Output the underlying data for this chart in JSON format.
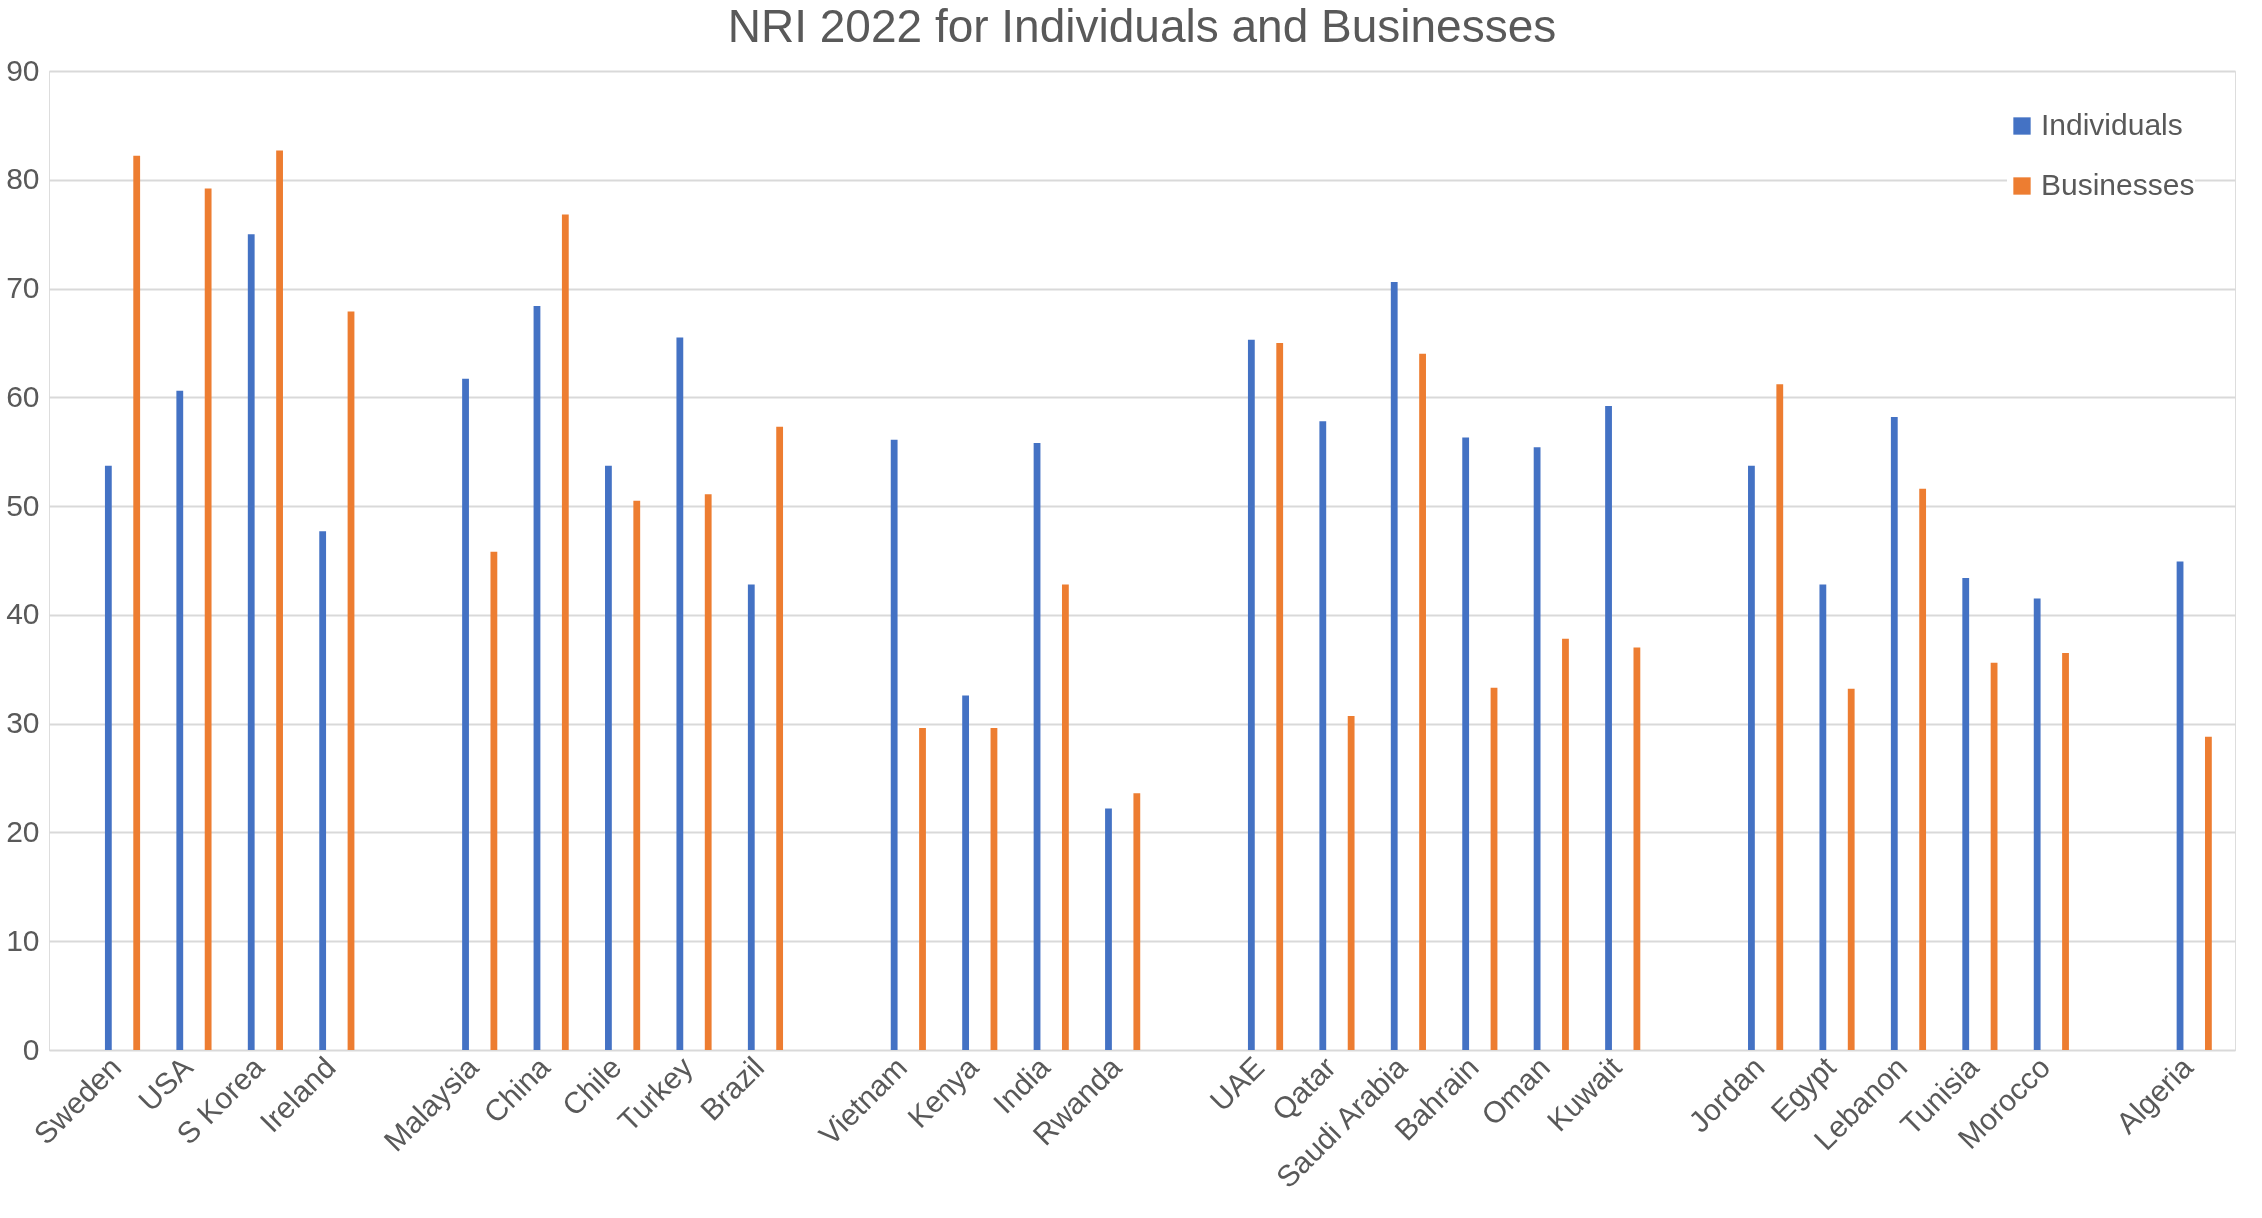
{
  "chart_data": {
    "type": "bar",
    "title": "NRI 2022 for Individuals and Businesses",
    "categories": [
      "Sweden",
      "USA",
      "S Korea",
      "Ireland",
      null,
      "Malaysia",
      "China",
      "Chile",
      "Turkey",
      "Brazil",
      null,
      "Vietnam",
      "Kenya",
      "India",
      "Rwanda",
      null,
      "UAE",
      "Qatar",
      "Saudi Arabia",
      "Bahrain",
      "Oman",
      "Kuwait",
      null,
      "Jordan",
      "Egypt",
      "Lebanon",
      "Tunisia",
      "Morocco",
      null,
      "Algeria"
    ],
    "series": [
      {
        "name": "Individuals",
        "color": "#4472c4",
        "values": [
          53.7,
          60.6,
          75.0,
          47.7,
          null,
          61.7,
          68.4,
          53.7,
          65.5,
          42.8,
          null,
          56.1,
          32.6,
          55.8,
          22.2,
          null,
          65.3,
          57.8,
          70.6,
          56.3,
          55.4,
          59.2,
          null,
          53.7,
          42.8,
          58.2,
          43.4,
          41.5,
          null,
          44.9
        ]
      },
      {
        "name": "Businesses",
        "color": "#ed7d31",
        "values": [
          82.2,
          79.2,
          82.7,
          67.9,
          null,
          45.8,
          76.8,
          50.5,
          51.1,
          57.3,
          null,
          29.6,
          29.6,
          42.8,
          23.6,
          null,
          65.0,
          30.7,
          64.0,
          33.3,
          37.8,
          37.0,
          null,
          61.2,
          33.2,
          51.6,
          35.6,
          36.5,
          null,
          28.8
        ]
      }
    ],
    "ylim": [
      0,
      90
    ],
    "yticks": [
      0,
      10,
      20,
      30,
      40,
      50,
      60,
      70,
      80,
      90
    ],
    "grid": "y",
    "legend": "top right"
  }
}
